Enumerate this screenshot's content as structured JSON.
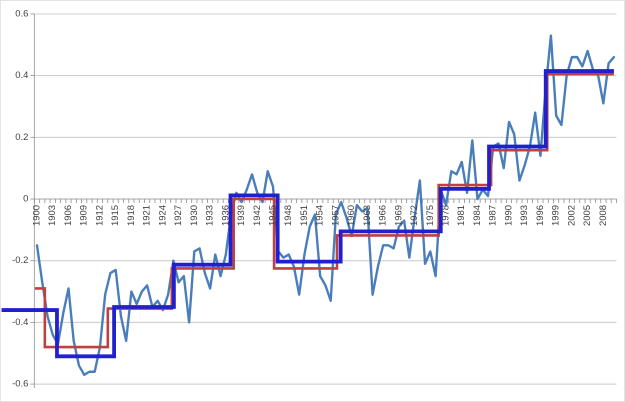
{
  "chart_data": {
    "type": "line",
    "title": "",
    "legend_position": "none",
    "grid": "horizontal",
    "ylim": [
      -0.6,
      0.6
    ],
    "ytick_values": [
      0.6,
      0.4,
      0.2,
      0,
      -0.2,
      -0.4,
      -0.6
    ],
    "ytick_labels": [
      "0.6",
      "0.4",
      "0.2",
      "0",
      "-0.2",
      "-0.4",
      "-0.6"
    ],
    "x_range": [
      1900,
      2010
    ],
    "xtick_labels": [
      "1900",
      "1903",
      "1906",
      "1909",
      "1912",
      "1915",
      "1918",
      "1921",
      "1924",
      "1927",
      "1930",
      "1933",
      "1936",
      "1939",
      "1942",
      "1945",
      "1948",
      "1951",
      "1954",
      "1957",
      "1960",
      "1963",
      "1966",
      "1969",
      "1972",
      "1975",
      "1978",
      "1981",
      "1984",
      "1987",
      "1990",
      "1993",
      "1996",
      "1999",
      "2002",
      "2005",
      "2008"
    ],
    "colors": {
      "gridline": "#c9c9c9",
      "axis": "#a6a6a6",
      "tick": "#8c8c8c",
      "label": "#3f3f3f",
      "annual_line": "#4a7ebb",
      "red_step": "#bf4040",
      "blue_step": "#2020cc"
    },
    "series": [
      {
        "name": "annual-anomaly",
        "kind": "line",
        "color": "#4a7ebb",
        "width": 2.4,
        "x_start": 1900,
        "values": [
          -0.15,
          -0.27,
          -0.38,
          -0.44,
          -0.47,
          -0.37,
          -0.29,
          -0.46,
          -0.54,
          -0.57,
          -0.56,
          -0.56,
          -0.48,
          -0.31,
          -0.24,
          -0.23,
          -0.38,
          -0.46,
          -0.3,
          -0.34,
          -0.3,
          -0.28,
          -0.35,
          -0.33,
          -0.36,
          -0.31,
          -0.2,
          -0.27,
          -0.25,
          -0.4,
          -0.17,
          -0.16,
          -0.24,
          -0.29,
          -0.18,
          -0.25,
          -0.18,
          -0.05,
          0.02,
          -0.01,
          0.03,
          0.08,
          0.02,
          -0.01,
          0.09,
          0.04,
          -0.17,
          -0.19,
          -0.18,
          -0.22,
          -0.31,
          -0.18,
          -0.09,
          -0.05,
          -0.25,
          -0.28,
          -0.33,
          -0.05,
          -0.01,
          -0.06,
          -0.12,
          -0.02,
          -0.04,
          -0.03,
          -0.31,
          -0.22,
          -0.15,
          -0.15,
          -0.16,
          -0.09,
          -0.07,
          -0.19,
          -0.06,
          0.06,
          -0.21,
          -0.17,
          -0.25,
          0.03,
          -0.02,
          0.09,
          0.08,
          0.12,
          0.02,
          0.19,
          0.0,
          0.03,
          0.01,
          0.17,
          0.18,
          0.1,
          0.25,
          0.21,
          0.06,
          0.11,
          0.17,
          0.28,
          0.14,
          0.36,
          0.53,
          0.27,
          0.24,
          0.4,
          0.46,
          0.46,
          0.43,
          0.48,
          0.42,
          0.4,
          0.31,
          0.44,
          0.46
        ]
      },
      {
        "name": "red-step-fit",
        "kind": "step",
        "color": "#bf4040",
        "width": 2.6,
        "segments": [
          {
            "from": 1899.6,
            "to": 1901.5,
            "value": -0.29
          },
          {
            "from": 1901.5,
            "to": 1913.5,
            "value": -0.48
          },
          {
            "from": 1913.5,
            "to": 1925.7,
            "value": -0.355
          },
          {
            "from": 1925.7,
            "to": 1937.5,
            "value": -0.225
          },
          {
            "from": 1937.5,
            "to": 1945.2,
            "value": 0.0
          },
          {
            "from": 1945.2,
            "to": 1957.2,
            "value": -0.225
          },
          {
            "from": 1957.2,
            "to": 1976.6,
            "value": -0.118
          },
          {
            "from": 1976.6,
            "to": 1986.6,
            "value": 0.045
          },
          {
            "from": 1986.6,
            "to": 1997.3,
            "value": 0.158
          },
          {
            "from": 1997.3,
            "to": 2010.0,
            "value": 0.405
          }
        ]
      },
      {
        "name": "blue-step-fit",
        "kind": "step",
        "color": "#2020cc",
        "width": 3.8,
        "segments": [
          {
            "from": 1893.0,
            "to": 1903.8,
            "value": -0.36
          },
          {
            "from": 1903.8,
            "to": 1914.7,
            "value": -0.51
          },
          {
            "from": 1914.7,
            "to": 1926.1,
            "value": -0.35
          },
          {
            "from": 1926.1,
            "to": 1936.9,
            "value": -0.213
          },
          {
            "from": 1936.9,
            "to": 1945.9,
            "value": 0.012
          },
          {
            "from": 1945.9,
            "to": 1957.9,
            "value": -0.203
          },
          {
            "from": 1957.9,
            "to": 1977.0,
            "value": -0.105
          },
          {
            "from": 1977.0,
            "to": 1986.2,
            "value": 0.033
          },
          {
            "from": 1986.2,
            "to": 1997.0,
            "value": 0.17
          },
          {
            "from": 1997.0,
            "to": 2010.0,
            "value": 0.415
          }
        ]
      }
    ]
  }
}
